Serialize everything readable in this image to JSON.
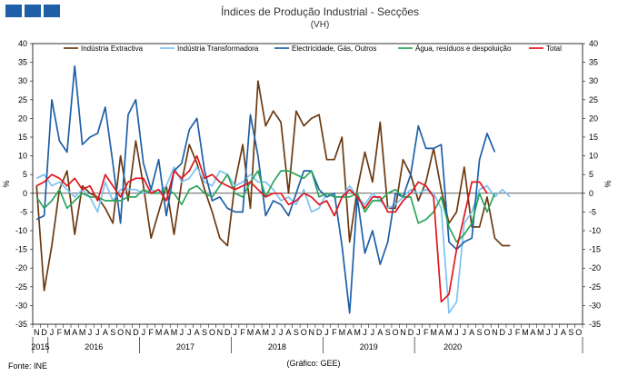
{
  "chart_data": {
    "type": "line",
    "title": "Índices de Produção Industrial - Secções",
    "subtitle": "(VH)",
    "ylabel_left": "%",
    "ylabel_right": "%",
    "ylim": [
      -35,
      40
    ],
    "yticks": [
      -35,
      -30,
      -25,
      -20,
      -15,
      -10,
      -5,
      0,
      5,
      10,
      15,
      20,
      25,
      30,
      35,
      40
    ],
    "month_labels": [
      "N",
      "D",
      "J",
      "F",
      "M",
      "A",
      "M",
      "J",
      "J",
      "A",
      "S",
      "O",
      "N",
      "D",
      "J",
      "F",
      "M",
      "A",
      "M",
      "J",
      "J",
      "A",
      "S",
      "O",
      "N",
      "D",
      "J",
      "F",
      "M",
      "A",
      "M",
      "J",
      "J",
      "A",
      "S",
      "O",
      "N",
      "D",
      "J",
      "F",
      "M",
      "A",
      "M",
      "J",
      "J",
      "A",
      "S",
      "O",
      "N",
      "D",
      "J",
      "F",
      "M",
      "A",
      "M",
      "J",
      "J",
      "A",
      "S",
      "O",
      "N",
      "D",
      "J",
      "F",
      "M",
      "A",
      "M",
      "J",
      "J",
      "A",
      "S",
      "O"
    ],
    "years": [
      {
        "label": "2015",
        "start": 0,
        "end": 2
      },
      {
        "label": "2016",
        "start": 2,
        "end": 14
      },
      {
        "label": "2017",
        "start": 14,
        "end": 26
      },
      {
        "label": "2018",
        "start": 26,
        "end": 38
      },
      {
        "label": "2019",
        "start": 38,
        "end": 50
      },
      {
        "label": "2020",
        "start": 50,
        "end": 60
      }
    ],
    "series": [
      {
        "name": "Indústria Extractiva",
        "color": "#6b3a12",
        "values": [
          2,
          -26,
          -14,
          1,
          6,
          -11,
          2,
          0,
          -1,
          -4,
          -8,
          10,
          -2,
          14,
          2,
          -12,
          -5,
          2,
          -11,
          3,
          13,
          8,
          1,
          -5,
          -12,
          -14,
          3,
          13,
          -4,
          30,
          18,
          22,
          19,
          0,
          22,
          18,
          20,
          21,
          9,
          9,
          15,
          -13,
          1,
          11,
          3,
          19,
          -4,
          -4,
          9,
          5,
          -2,
          3,
          12,
          1,
          -8,
          -5,
          7,
          -9,
          -9,
          -1,
          -12,
          -14,
          -14
        ]
      },
      {
        "name": "Indústria Transformadora",
        "color": "#7cc3f0",
        "values": [
          4,
          5,
          2,
          3,
          1,
          -1,
          1,
          -1,
          -5,
          3,
          -2,
          1,
          1,
          1,
          0,
          1,
          0,
          2,
          7,
          3,
          4,
          7,
          3,
          2,
          6,
          5,
          2,
          3,
          5,
          3,
          3,
          1,
          -2,
          -1,
          -3,
          1,
          -5,
          -4,
          0,
          -1,
          -1,
          2,
          -1,
          -3,
          0,
          -2,
          -4,
          -3,
          -1,
          1,
          0,
          1,
          0,
          -4,
          -32,
          -29,
          -8,
          -5,
          1,
          2,
          -1,
          1,
          -1
        ]
      },
      {
        "name": "Electricidade, Gás, Outros",
        "color": "#1f5fa8",
        "values": [
          -7,
          -6,
          25,
          14,
          11,
          34,
          13,
          15,
          16,
          23,
          8,
          -8,
          21,
          25,
          8,
          1,
          9,
          -6,
          6,
          8,
          17,
          20,
          6,
          -2,
          -1,
          -4,
          -5,
          -5,
          21,
          10,
          -6,
          -2,
          -3,
          -6,
          0,
          6,
          6,
          1,
          -1,
          0,
          -14,
          -32,
          -1,
          -16,
          -10,
          -19,
          -13,
          0,
          -1,
          5,
          18,
          12,
          12,
          13,
          -13,
          -15,
          -13,
          -12,
          9,
          16,
          11
        ]
      },
      {
        "name": "Água, resíduos e despoluição",
        "color": "#2aa55a",
        "values": [
          -1,
          -4,
          -2,
          1,
          -4,
          -2,
          0,
          -1,
          -1,
          -2,
          -2,
          -2,
          -1,
          -1,
          1,
          0,
          0,
          1,
          0,
          -3,
          1,
          2,
          0,
          -1,
          2,
          5,
          0,
          -1,
          3,
          6,
          -1,
          3,
          6,
          6,
          5,
          4,
          6,
          -1,
          0,
          -1,
          -1,
          -1,
          0,
          -5,
          -2,
          -2,
          0,
          1,
          -1,
          -1,
          -8,
          -7,
          -5,
          -1,
          -9,
          -13,
          -11,
          -8,
          0,
          -5,
          0
        ]
      },
      {
        "name": "Total",
        "color": "#e0161d",
        "values": [
          2,
          3,
          5,
          4,
          2,
          4,
          1,
          2,
          -2,
          5,
          2,
          -1,
          3,
          4,
          4,
          0,
          1,
          -2,
          6,
          4,
          6,
          10,
          4,
          5,
          3,
          2,
          1,
          2,
          3,
          1,
          -1,
          0,
          0,
          -3,
          -2,
          0,
          -1,
          -3,
          -2,
          -6,
          -1,
          1,
          -1,
          -4,
          -1,
          -1,
          -5,
          -5,
          -2,
          0,
          3,
          2,
          -1,
          -29,
          -27,
          -15,
          -6,
          3,
          3,
          0
        ]
      }
    ],
    "footer_left": "Fonte: INE",
    "footer_center": "(Gráfico: GEE)"
  }
}
